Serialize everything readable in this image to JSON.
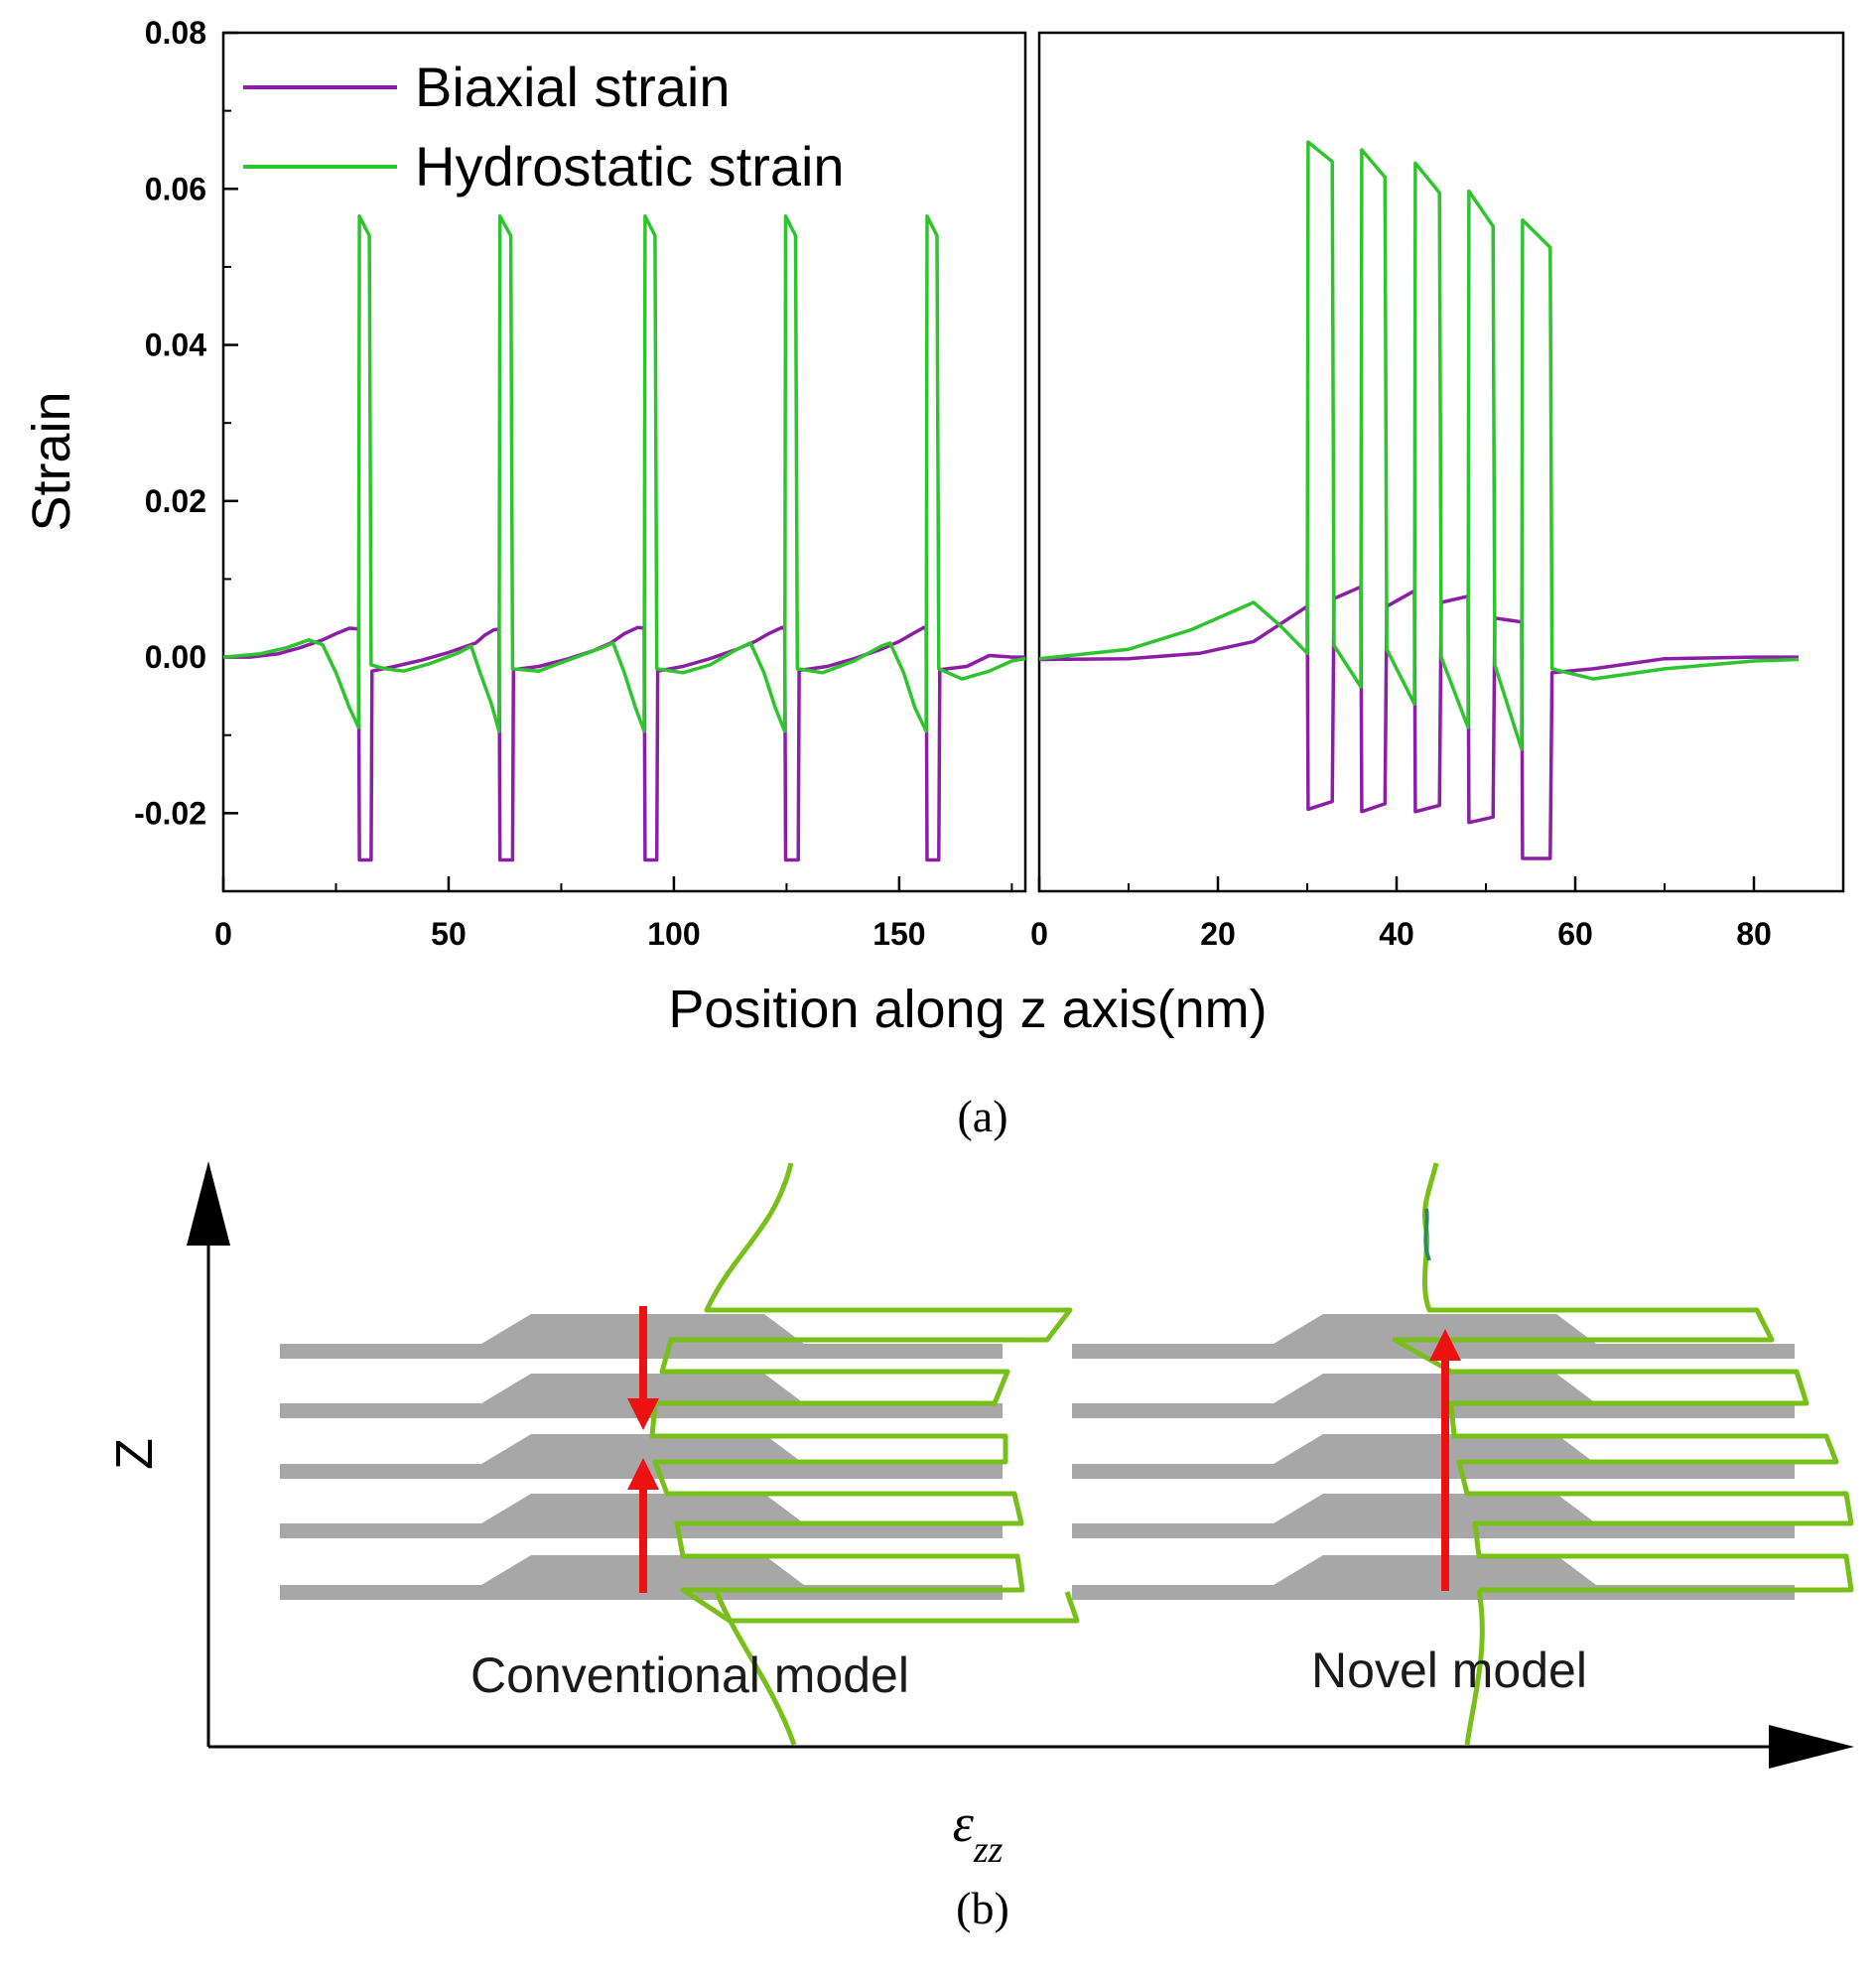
{
  "chart_data": [
    {
      "type": "line",
      "panel_caption": "(a)",
      "title": "",
      "xlabel": "Position along z axis(nm)",
      "ylabel": "Strain",
      "ylim": [
        -0.03,
        0.08
      ],
      "y_ticks": [
        "-0.02",
        "0.00",
        "0.02",
        "0.04",
        "0.06",
        "0.08"
      ],
      "legend": {
        "placement": "top-left",
        "entries": [
          "Biaxial strain",
          "Hydrostatic strain"
        ]
      },
      "colors": {
        "biaxial": "#8c1ea6",
        "hydrostatic": "#2ec42e"
      },
      "subplots": [
        {
          "name": "conventional",
          "xlim": [
            0,
            178
          ],
          "x_ticks": [
            "0",
            "50",
            "100",
            "150"
          ],
          "series": [
            {
              "name": "Biaxial strain",
              "points": [
                [
                  0,
                  0
                ],
                [
                  6,
                  0
                ],
                [
                  12,
                  0.0004
                ],
                [
                  17,
                  0.0012
                ],
                [
                  22,
                  0.0022
                ],
                [
                  25,
                  0.003
                ],
                [
                  28,
                  0.0037
                ],
                [
                  30,
                  0.0036
                ],
                [
                  30.2,
                  -0.026
                ],
                [
                  32.8,
                  -0.026
                ],
                [
                  33,
                  -0.0018
                ],
                [
                  38,
                  -0.0012
                ],
                [
                  44,
                  -0.0004
                ],
                [
                  50,
                  0.0006
                ],
                [
                  56,
                  0.0018
                ],
                [
                  58,
                  0.0028
                ],
                [
                  60,
                  0.0035
                ],
                [
                  61.2,
                  0.0036
                ],
                [
                  61.4,
                  -0.026
                ],
                [
                  64.2,
                  -0.026
                ],
                [
                  64.4,
                  -0.0016
                ],
                [
                  70,
                  -0.0012
                ],
                [
                  76,
                  -0.0003
                ],
                [
                  82,
                  0.0008
                ],
                [
                  86,
                  0.0018
                ],
                [
                  89,
                  0.003
                ],
                [
                  92,
                  0.0038
                ],
                [
                  93.4,
                  0.0037
                ],
                [
                  93.6,
                  -0.026
                ],
                [
                  96.2,
                  -0.026
                ],
                [
                  96.4,
                  -0.0018
                ],
                [
                  102,
                  -0.0012
                ],
                [
                  108,
                  -0.0002
                ],
                [
                  114,
                  0.001
                ],
                [
                  118,
                  0.002
                ],
                [
                  121,
                  0.003
                ],
                [
                  124,
                  0.0038
                ],
                [
                  124.6,
                  0.0037
                ],
                [
                  124.8,
                  -0.026
                ],
                [
                  127.6,
                  -0.026
                ],
                [
                  127.8,
                  -0.0017
                ],
                [
                  134,
                  -0.0012
                ],
                [
                  140,
                  -0.0002
                ],
                [
                  146,
                  0.001
                ],
                [
                  150,
                  0.002
                ],
                [
                  153,
                  0.003
                ],
                [
                  155.5,
                  0.0038
                ],
                [
                  156,
                  0.0037
                ],
                [
                  156.2,
                  -0.026
                ],
                [
                  158.8,
                  -0.026
                ],
                [
                  159,
                  -0.0016
                ],
                [
                  165,
                  -0.0012
                ],
                [
                  170,
                  0.0002
                ],
                [
                  175,
                  0
                ],
                [
                  178,
                  0
                ]
              ]
            },
            {
              "name": "Hydrostatic strain",
              "points": [
                [
                  0,
                  0
                ],
                [
                  8,
                  0.0004
                ],
                [
                  14,
                  0.0012
                ],
                [
                  19,
                  0.0022
                ],
                [
                  22,
                  0.0016
                ],
                [
                  25,
                  -0.002
                ],
                [
                  28,
                  -0.0065
                ],
                [
                  30,
                  -0.009
                ],
                [
                  30.2,
                  0.0565
                ],
                [
                  32.4,
                  0.054
                ],
                [
                  32.8,
                  -0.001
                ],
                [
                  36,
                  -0.0015
                ],
                [
                  40,
                  -0.0018
                ],
                [
                  46,
                  -0.0008
                ],
                [
                  52,
                  0.0005
                ],
                [
                  55,
                  0.0014
                ],
                [
                  57,
                  -0.002
                ],
                [
                  59.5,
                  -0.006
                ],
                [
                  61.2,
                  -0.0095
                ],
                [
                  61.4,
                  0.0565
                ],
                [
                  63.8,
                  0.054
                ],
                [
                  64.2,
                  -0.0015
                ],
                [
                  70,
                  -0.0018
                ],
                [
                  76,
                  -0.0005
                ],
                [
                  84,
                  0.0012
                ],
                [
                  86.5,
                  0.0018
                ],
                [
                  89,
                  -0.002
                ],
                [
                  91.5,
                  -0.0065
                ],
                [
                  93.4,
                  -0.0095
                ],
                [
                  93.6,
                  0.0565
                ],
                [
                  95.8,
                  0.054
                ],
                [
                  96.2,
                  -0.0015
                ],
                [
                  102,
                  -0.002
                ],
                [
                  108,
                  -0.001
                ],
                [
                  114,
                  0.001
                ],
                [
                  117,
                  0.0018
                ],
                [
                  120,
                  -0.002
                ],
                [
                  122.5,
                  -0.0065
                ],
                [
                  124.6,
                  -0.0095
                ],
                [
                  124.8,
                  0.0565
                ],
                [
                  127,
                  0.054
                ],
                [
                  127.4,
                  -0.0015
                ],
                [
                  133,
                  -0.002
                ],
                [
                  140,
                  -0.0005
                ],
                [
                  146,
                  0.0014
                ],
                [
                  148,
                  0.0018
                ],
                [
                  151,
                  -0.002
                ],
                [
                  153.5,
                  -0.0065
                ],
                [
                  156,
                  -0.0095
                ],
                [
                  156.2,
                  0.0565
                ],
                [
                  158.4,
                  0.054
                ],
                [
                  158.8,
                  -0.0015
                ],
                [
                  164,
                  -0.0028
                ],
                [
                  170,
                  -0.0018
                ],
                [
                  175,
                  -0.0005
                ],
                [
                  178,
                  -0.0002
                ]
              ]
            }
          ]
        },
        {
          "name": "novel",
          "xlim": [
            0,
            90
          ],
          "x_ticks": [
            "0",
            "20",
            "40",
            "60",
            "80"
          ],
          "series": [
            {
              "name": "Biaxial strain",
              "points": [
                [
                  0,
                  -0.0003
                ],
                [
                  10,
                  -0.0002
                ],
                [
                  18,
                  0.0005
                ],
                [
                  24,
                  0.002
                ],
                [
                  28,
                  0.005
                ],
                [
                  30,
                  0.0065
                ],
                [
                  30.1,
                  -0.0195
                ],
                [
                  32.8,
                  -0.0185
                ],
                [
                  33,
                  0.0075
                ],
                [
                  36,
                  0.009
                ],
                [
                  36.1,
                  -0.0198
                ],
                [
                  38.7,
                  -0.0188
                ],
                [
                  38.9,
                  0.0065
                ],
                [
                  42,
                  0.0085
                ],
                [
                  42.1,
                  -0.0198
                ],
                [
                  44.8,
                  -0.019
                ],
                [
                  45,
                  0.007
                ],
                [
                  48,
                  0.0078
                ],
                [
                  48.1,
                  -0.0212
                ],
                [
                  50.8,
                  -0.0205
                ],
                [
                  51,
                  0.005
                ],
                [
                  54,
                  0.0045
                ],
                [
                  54.1,
                  -0.0258
                ],
                [
                  57.2,
                  -0.0258
                ],
                [
                  57.4,
                  -0.002
                ],
                [
                  62,
                  -0.0015
                ],
                [
                  70,
                  -0.0002
                ],
                [
                  80,
                  0
                ],
                [
                  85,
                  0
                ]
              ]
            },
            {
              "name": "Hydrostatic strain",
              "points": [
                [
                  0,
                  -0.0002
                ],
                [
                  10,
                  0.001
                ],
                [
                  17,
                  0.0035
                ],
                [
                  24,
                  0.007
                ],
                [
                  27,
                  0.004
                ],
                [
                  30,
                  0.0005
                ],
                [
                  30.1,
                  0.066
                ],
                [
                  32.8,
                  0.0635
                ],
                [
                  33,
                  0.0015
                ],
                [
                  36,
                  -0.0038
                ],
                [
                  36.1,
                  0.065
                ],
                [
                  38.7,
                  0.0615
                ],
                [
                  38.9,
                  0.001
                ],
                [
                  42,
                  -0.006
                ],
                [
                  42.1,
                  0.0633
                ],
                [
                  44.8,
                  0.0595
                ],
                [
                  45,
                  0
                ],
                [
                  48,
                  -0.009
                ],
                [
                  48.1,
                  0.0597
                ],
                [
                  50.8,
                  0.0552
                ],
                [
                  51,
                  -0.001
                ],
                [
                  54,
                  -0.0118
                ],
                [
                  54.1,
                  0.056
                ],
                [
                  57.2,
                  0.0525
                ],
                [
                  57.4,
                  -0.0015
                ],
                [
                  62,
                  -0.0028
                ],
                [
                  70,
                  -0.0015
                ],
                [
                  80,
                  -0.0005
                ],
                [
                  85,
                  -0.0003
                ]
              ]
            }
          ]
        }
      ]
    },
    {
      "type": "diagram",
      "panel_caption": "(b)",
      "y_axis_label": "Z",
      "x_axis_label_base": "ε",
      "x_axis_label_sub": "zz",
      "models": [
        "Conventional model",
        "Novel model"
      ]
    }
  ]
}
